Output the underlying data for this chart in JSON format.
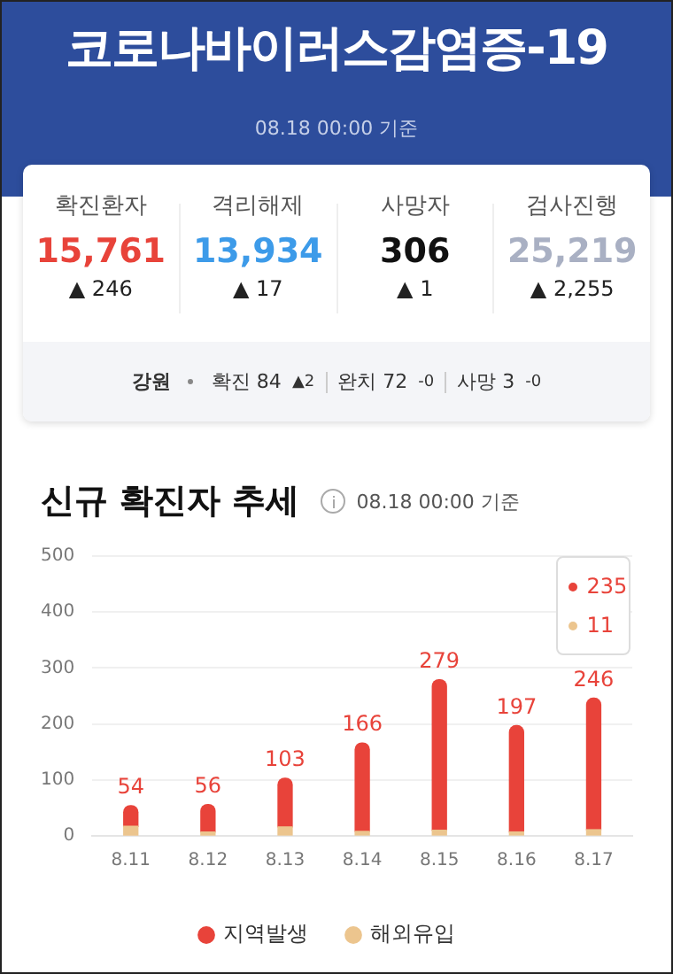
{
  "chart_data": [
    {
      "type": "other",
      "title": "코로나바이러스감염증-19",
      "subtitle": "08.18 00:00 기준",
      "annotations": [
        "확진환자",
        "격리해제",
        "사망자",
        "검사진행",
        "15,761",
        "13,934",
        "306",
        "25,219",
        "▲ 246",
        "▲ 17",
        "▲ 1",
        "▲ 2,255",
        "강원",
        "확진 84",
        "▲2",
        "완치 72",
        "-0",
        "사망 3",
        "-0"
      ]
    },
    {
      "type": "bar",
      "title": "신규 확진자 추세",
      "subtitle": "08.18 00:00 기준",
      "stacked": true,
      "categories": [
        "8.11",
        "8.12",
        "8.13",
        "8.14",
        "8.15",
        "8.16",
        "8.17"
      ],
      "series": [
        {
          "name": "지역발생",
          "color": "#e8433a",
          "values": [
            37,
            49,
            87,
            158,
            269,
            190,
            235
          ]
        },
        {
          "name": "해외유입",
          "color": "#ecc58e",
          "values": [
            17,
            7,
            16,
            8,
            10,
            7,
            11
          ]
        }
      ],
      "totals": [
        "54",
        "56",
        "103",
        "166",
        "279",
        "197",
        "246"
      ],
      "annotations": [
        "235",
        "11"
      ],
      "ylim": [
        0,
        500
      ],
      "yticks": [
        0,
        100,
        200,
        300,
        400,
        500
      ],
      "grid": "y",
      "legend": "bottom"
    }
  ]
}
